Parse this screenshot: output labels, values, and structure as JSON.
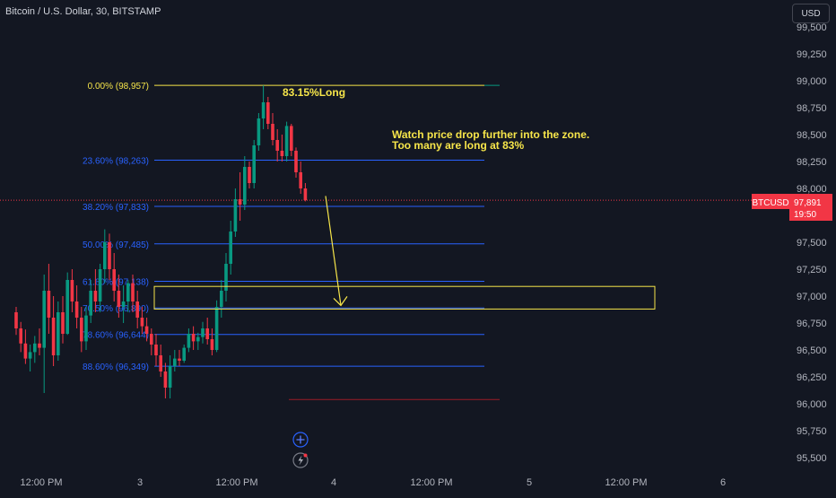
{
  "header": {
    "title": "Bitcoin / U.S. Dollar, 30, BITSTAMP",
    "currency_button": "USD"
  },
  "price_scale": {
    "labels": [
      "99,500",
      "99,250",
      "99,000",
      "98,750",
      "98,500",
      "98,250",
      "98,000",
      "97,750",
      "97,500",
      "97,250",
      "97,000",
      "96,750",
      "96,500",
      "96,250",
      "96,000",
      "95,750",
      "95,500"
    ]
  },
  "time_axis": {
    "labels": [
      "12:00 PM",
      "3",
      "12:00 PM",
      "4",
      "12:00 PM",
      "5",
      "12:00 PM",
      "6"
    ]
  },
  "last_price": {
    "symbol": "BTCUSD",
    "price": "97,891",
    "countdown": "19:50",
    "value": 97891,
    "color": "#f23645"
  },
  "fibonacci": {
    "levels": [
      {
        "label": "0.00% (98,957)",
        "price": 98957,
        "color": "#f7e64a"
      },
      {
        "label": "23.60% (98,263)",
        "price": 98263,
        "color": "#2962ff"
      },
      {
        "label": "38.20% (97,833)",
        "price": 97833,
        "color": "#2962ff"
      },
      {
        "label": "50.00% (97,485)",
        "price": 97485,
        "color": "#2962ff"
      },
      {
        "label": "61.80% (97,138)",
        "price": 97138,
        "color": "#2962ff"
      },
      {
        "label": "70.50% (96,890)",
        "price": 96890,
        "color": "#2962ff"
      },
      {
        "label": "78.60% (96,644)",
        "price": 96644,
        "color": "#2962ff"
      },
      {
        "label": "88.60% (96,349)",
        "price": 96349,
        "color": "#2962ff"
      }
    ]
  },
  "annotations": {
    "long_ratio": "83.15%Long",
    "note_line1": "Watch price drop further into the zone.",
    "note_line2": "Too many are long at 83%",
    "zone": {
      "top": 97090,
      "bottom": 96880
    },
    "arrow": {
      "from": 97930,
      "to": 96880
    }
  },
  "colors": {
    "bull": "#089981",
    "bear": "#f23645",
    "annotation": "#f7e64a",
    "fib": "#2962ff",
    "background": "#131722"
  },
  "chart_data": {
    "type": "candlestick",
    "title": "Bitcoin / U.S. Dollar, 30, BITSTAMP",
    "ylim": [
      95500,
      99550
    ],
    "ohlc": [
      [
        96850,
        96900,
        96640,
        96700
      ],
      [
        96700,
        96760,
        96480,
        96560
      ],
      [
        96560,
        96690,
        96370,
        96420
      ],
      [
        96420,
        96550,
        96300,
        96480
      ],
      [
        96480,
        96630,
        96380,
        96560
      ],
      [
        96560,
        96700,
        96450,
        96520
      ],
      [
        96520,
        97200,
        96100,
        97050
      ],
      [
        97050,
        97300,
        96650,
        96800
      ],
      [
        96800,
        97000,
        96350,
        96450
      ],
      [
        96450,
        96950,
        96400,
        96850
      ],
      [
        96850,
        97000,
        96560,
        96650
      ],
      [
        96650,
        97220,
        96640,
        97150
      ],
      [
        97150,
        97250,
        96850,
        96950
      ],
      [
        96950,
        97100,
        96700,
        96800
      ],
      [
        96800,
        96900,
        96480,
        96580
      ],
      [
        96580,
        96900,
        96500,
        96820
      ],
      [
        96820,
        97150,
        96750,
        97050
      ],
      [
        97050,
        97250,
        96850,
        96950
      ],
      [
        96950,
        97300,
        96850,
        97250
      ],
      [
        97250,
        97620,
        97120,
        97500
      ],
      [
        97500,
        97580,
        97150,
        97250
      ],
      [
        97250,
        97400,
        96950,
        97050
      ],
      [
        97050,
        97200,
        96800,
        96900
      ],
      [
        96900,
        97100,
        96750,
        96950
      ],
      [
        96950,
        97150,
        96850,
        97120
      ],
      [
        97120,
        97200,
        96850,
        96950
      ],
      [
        96950,
        97050,
        96700,
        96800
      ],
      [
        96800,
        96900,
        96650,
        96720
      ],
      [
        96720,
        96800,
        96580,
        96650
      ],
      [
        96650,
        96700,
        96450,
        96550
      ],
      [
        96550,
        96650,
        96350,
        96450
      ],
      [
        96450,
        96550,
        96250,
        96300
      ],
      [
        96300,
        96380,
        96050,
        96150
      ],
      [
        96150,
        96450,
        96050,
        96350
      ],
      [
        96350,
        96500,
        96300,
        96420
      ],
      [
        96420,
        96500,
        96350,
        96400
      ],
      [
        96400,
        96550,
        96380,
        96520
      ],
      [
        96520,
        96700,
        96480,
        96650
      ],
      [
        96650,
        96720,
        96500,
        96580
      ],
      [
        96580,
        96660,
        96500,
        96620
      ],
      [
        96620,
        96760,
        96560,
        96700
      ],
      [
        96700,
        96800,
        96550,
        96600
      ],
      [
        96600,
        96700,
        96450,
        96500
      ],
      [
        96500,
        96960,
        96480,
        96900
      ],
      [
        96900,
        97150,
        96800,
        97050
      ],
      [
        97050,
        97400,
        96950,
        97300
      ],
      [
        97300,
        97700,
        97200,
        97600
      ],
      [
        97600,
        98000,
        97550,
        97900
      ],
      [
        97900,
        98150,
        97700,
        97850
      ],
      [
        97850,
        98300,
        97800,
        98200
      ],
      [
        98200,
        98250,
        98000,
        98050
      ],
      [
        98050,
        98450,
        98000,
        98400
      ],
      [
        98400,
        98700,
        98350,
        98650
      ],
      [
        98650,
        98957,
        98550,
        98800
      ],
      [
        98800,
        98850,
        98550,
        98600
      ],
      [
        98600,
        98700,
        98400,
        98450
      ],
      [
        98450,
        98550,
        98250,
        98350
      ],
      [
        98350,
        98500,
        98250,
        98300
      ],
      [
        98300,
        98620,
        98250,
        98580
      ],
      [
        98580,
        98600,
        98300,
        98350
      ],
      [
        98350,
        98380,
        98100,
        98150
      ],
      [
        98150,
        98250,
        97950,
        98000
      ],
      [
        98000,
        98050,
        97880,
        97891
      ]
    ]
  }
}
